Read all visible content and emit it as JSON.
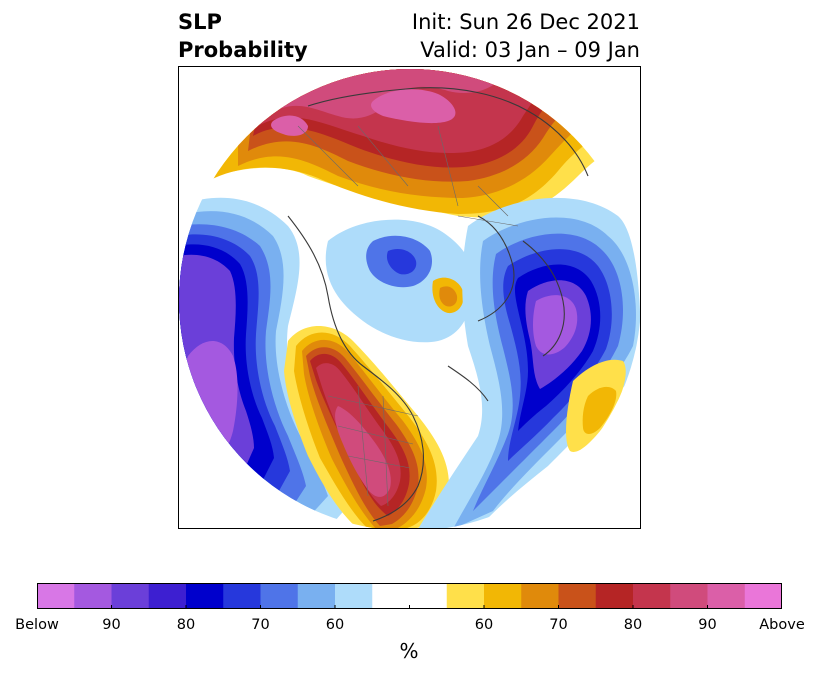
{
  "header": {
    "variable": "SLP",
    "product": "Probability",
    "init": "Init: Sun 26 Dec 2021",
    "valid": "Valid: 03 Jan – 09 Jan"
  },
  "colorbar": {
    "colors": [
      "#d877e6",
      "#a459e0",
      "#6b3fd9",
      "#3d1fd1",
      "#0000cc",
      "#2638dc",
      "#4f74e8",
      "#79b0f0",
      "#aedcfa",
      "#ffffff",
      "#ffe04a",
      "#f2b705",
      "#e08a0b",
      "#c9521a",
      "#b52525",
      "#c4354d",
      "#d04b7c",
      "#db5fa8",
      "#ea76d9"
    ],
    "labels": [
      "Below",
      "90",
      "80",
      "70",
      "60",
      "",
      "60",
      "70",
      "80",
      "90",
      "Above"
    ],
    "unit": "%"
  },
  "map": {
    "projection": "north-polar-stereographic",
    "shading": "probability of above/below normal sea level pressure"
  }
}
